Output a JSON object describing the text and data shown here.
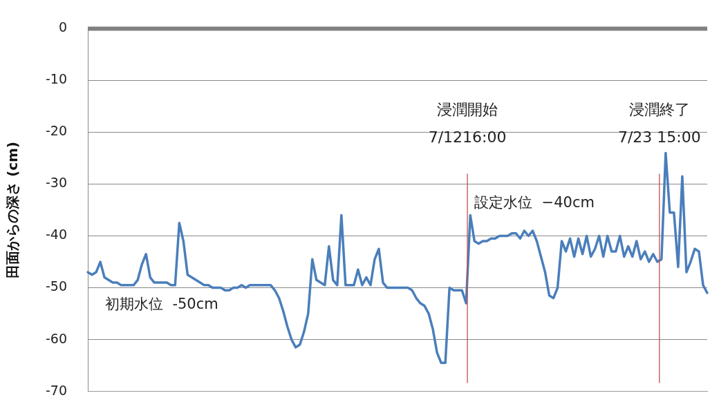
{
  "chart_data": {
    "type": "line",
    "ylabel": "田面からの深さ (cm)",
    "categories": [
      null,
      null,
      null,
      null,
      null,
      null,
      null,
      null,
      null,
      null,
      null,
      null,
      null,
      null,
      null,
      null,
      null,
      null,
      null,
      null,
      null,
      null,
      null,
      null,
      null,
      null,
      null,
      null,
      null,
      null,
      null,
      null,
      null,
      null,
      null,
      null,
      null,
      null,
      null,
      null,
      null,
      null,
      null,
      null,
      null,
      null,
      null,
      null,
      null,
      null,
      null,
      null,
      null,
      null,
      null,
      null,
      null,
      null,
      null,
      null,
      null,
      null,
      null,
      null,
      null,
      null,
      null,
      null,
      null,
      null,
      null,
      null,
      null,
      null,
      null,
      null,
      null,
      null,
      null,
      null,
      null,
      null,
      null,
      null,
      null,
      null,
      null,
      null,
      null,
      null,
      null,
      null,
      null,
      null,
      null,
      null,
      null,
      null,
      null,
      null,
      null,
      null,
      null,
      null,
      null,
      null,
      null,
      null,
      null,
      null,
      null,
      null,
      null,
      null,
      null,
      null,
      null,
      null,
      null,
      null,
      null,
      null,
      null,
      null,
      null,
      null,
      null,
      null,
      null,
      null,
      null,
      null,
      null,
      null,
      null,
      null,
      null,
      null,
      null,
      null,
      null,
      null,
      null,
      null,
      null,
      null,
      null,
      null,
      null,
      null
    ],
    "series": [
      {
        "color": "#4a7ebb",
        "values": [
          -47,
          -47.5,
          -47,
          -45,
          -48,
          -48.5,
          -49,
          -49,
          -49.5,
          -49.5,
          -49.5,
          -49.5,
          -48.5,
          -45.5,
          -43.5,
          -48,
          -49,
          -49,
          -49,
          -49,
          -49.5,
          -49.5,
          -37.5,
          -41,
          -47.5,
          -48,
          -48.5,
          -49,
          -49.5,
          -49.5,
          -50,
          -50,
          -50,
          -50.5,
          -50.5,
          -50,
          -50,
          -49.5,
          -50,
          -49.5,
          -49.5,
          -49.5,
          -49.5,
          -49.5,
          -49.5,
          -50.5,
          -52,
          -54.5,
          -57.5,
          -60,
          -61.5,
          -61,
          -58.5,
          -55,
          -44.5,
          -48.5,
          -49,
          -49.5,
          -42,
          -48.5,
          -49.5,
          -36,
          -49.5,
          -49.5,
          -49.5,
          -46.5,
          -49.5,
          -48,
          -49.5,
          -44.5,
          -42.5,
          -49,
          -50,
          -50,
          -50,
          -50,
          -50,
          -50,
          -50.5,
          -52,
          -53,
          -53.5,
          -55,
          -58,
          -62.5,
          -64.5,
          -64.5,
          -50,
          -50.5,
          -50.5,
          -50.5,
          -53,
          -36,
          -41,
          -41.5,
          -41,
          -41,
          -40.5,
          -40.5,
          -40,
          -40,
          -40,
          -39.5,
          -39.5,
          -40.5,
          -39,
          -40,
          -39,
          -41,
          -44,
          -47,
          -51.5,
          -52,
          -50,
          -41,
          -43,
          -40.5,
          -44,
          -40.5,
          -43.5,
          -40,
          -44,
          -42.5,
          -40,
          -44,
          -40,
          -43,
          -43,
          -40,
          -44,
          -42,
          -44,
          -41,
          -44.5,
          -43,
          -45,
          -43.5,
          -45,
          -44.5,
          -24,
          -35.5,
          -35.5,
          -46,
          -28.5,
          -47,
          -45,
          -42.5,
          -43,
          -49.5,
          -51
        ]
      }
    ],
    "ylim": [
      -70,
      0
    ],
    "yticks": [
      -70,
      -60,
      -50,
      -40,
      -30,
      -20,
      -10,
      0
    ],
    "grid": "y",
    "legend": false,
    "marker": "none",
    "line_style": "solid",
    "ref_lines": [
      {
        "axis": "y",
        "value": 0,
        "color": "#808080"
      }
    ],
    "annotations": [
      "初期水位  -50cm",
      "設定水位  −40cm",
      "浸潤開始\n7/1216:00",
      "浸潤終了\n7/23 15:00"
    ]
  }
}
